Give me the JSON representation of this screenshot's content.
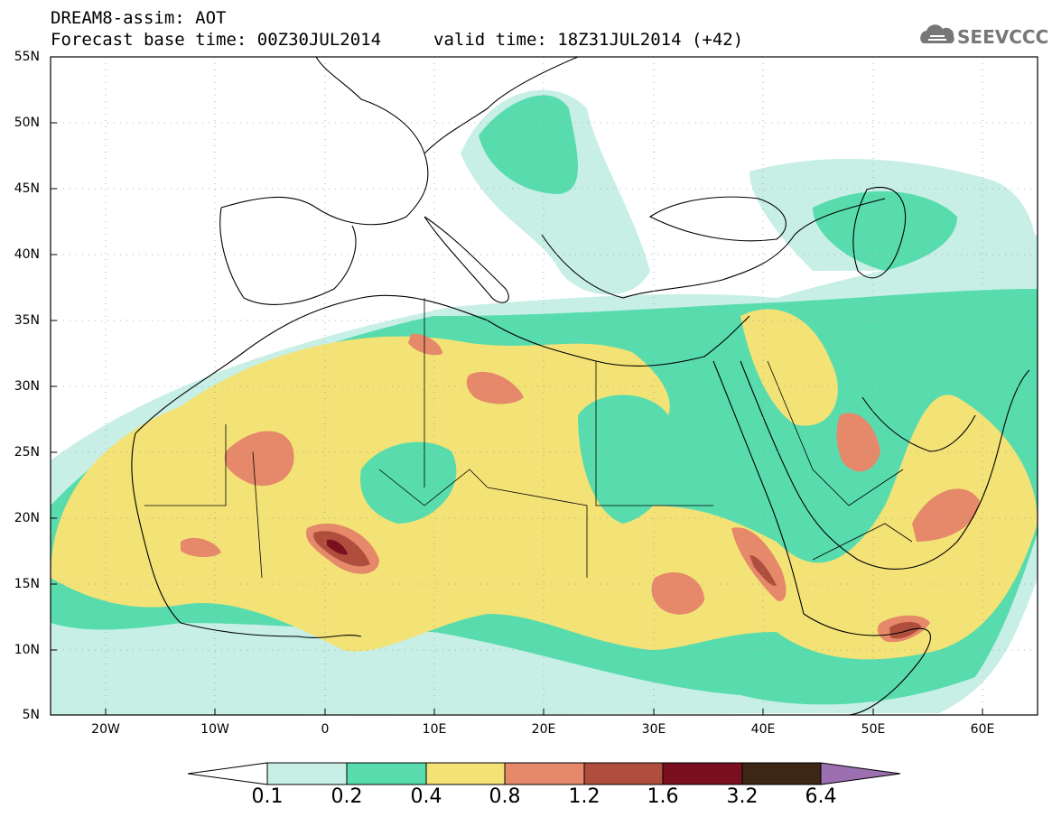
{
  "header": {
    "title_line1": "DREAM8-assim: AOT",
    "title_line2": "Forecast base time: 00Z30JUL2014",
    "valid_time": "valid time: 18Z31JUL2014 (+42)",
    "logo_text": "SEEVCCC"
  },
  "axes": {
    "lat_labels": [
      "55N",
      "50N",
      "45N",
      "40N",
      "35N",
      "30N",
      "25N",
      "20N",
      "15N",
      "10N",
      "5N"
    ],
    "lon_labels": [
      "20W",
      "10W",
      "0",
      "10E",
      "20E",
      "30E",
      "40E",
      "50E",
      "60E"
    ]
  },
  "colorbar": {
    "labels": [
      "0.1",
      "0.2",
      "0.4",
      "0.8",
      "1.2",
      "1.6",
      "3.2",
      "6.4"
    ],
    "colors": [
      "#c7efe6",
      "#58dcae",
      "#f3e276",
      "#e5896a",
      "#b04e3e",
      "#7a0f1f",
      "#3c2616",
      "#9c70b0"
    ]
  }
}
